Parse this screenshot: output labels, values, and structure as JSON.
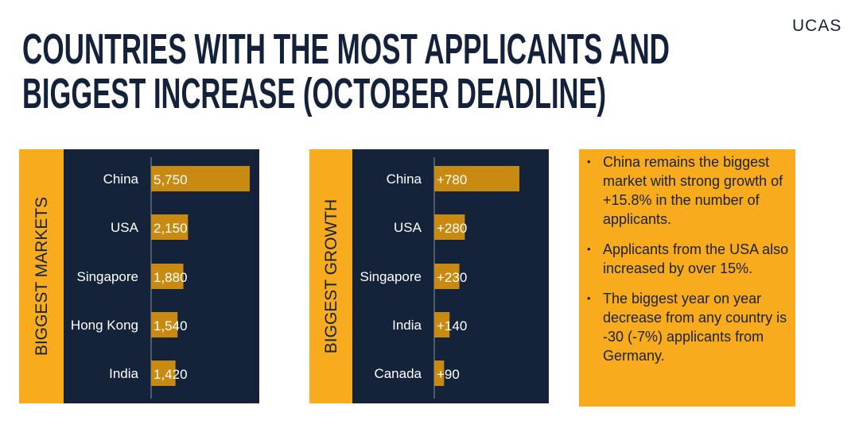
{
  "header": {
    "title_lines": [
      "COUNTRIES WITH THE MOST APPLICANTS AND",
      "BIGGEST INCREASE (OCTOBER DEADLINE)"
    ],
    "logo": "UCAS"
  },
  "chart_data": [
    {
      "type": "bar",
      "orientation": "horizontal",
      "title": "BIGGEST MARKETS",
      "categories": [
        "China",
        "USA",
        "Singapore",
        "Hong Kong",
        "India"
      ],
      "values": [
        5750,
        2150,
        1880,
        1540,
        1420
      ],
      "value_labels": [
        "5,750",
        "2,150",
        "1,880",
        "1,540",
        "1,420"
      ],
      "color": "#c98a12"
    },
    {
      "type": "bar",
      "orientation": "horizontal",
      "title": "BIGGEST GROWTH",
      "categories": [
        "China",
        "USA",
        "Singapore",
        "India",
        "Canada"
      ],
      "values": [
        780,
        280,
        230,
        140,
        90
      ],
      "value_labels": [
        "+780",
        "+280",
        "+230",
        "+140",
        "+90"
      ],
      "color": "#c98a12"
    }
  ],
  "notes": [
    "China remains the biggest market with strong growth of +15.8% in the number of applicants.",
    "Applicants from the USA also increased by over 15%.",
    "The biggest year on year decrease from any country is -30 (-7%) applicants from Germany."
  ]
}
